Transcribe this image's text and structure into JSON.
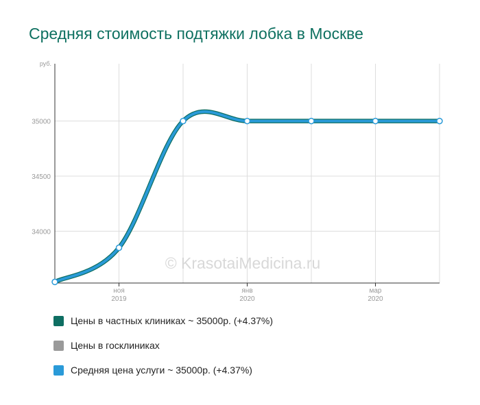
{
  "title": "Средняя стоимость подтяжки лобка в Москве",
  "watermark": "© KrasotaiMedicina.ru",
  "colors": {
    "private": "#0e6e62",
    "state": "#9a9a9a",
    "average": "#2a9ad8",
    "grid": "#dddddd",
    "axis": "#333333"
  },
  "legend": [
    {
      "label": "Цены в частных клиниках ~ 35000р. (+4.37%)",
      "color": "#0e6e62"
    },
    {
      "label": "Цены в госклиниках",
      "color": "#9a9a9a"
    },
    {
      "label": "Средняя цена услуги ~ 35000р. (+4.37%)",
      "color": "#2a9ad8"
    }
  ],
  "chart_data": {
    "type": "line",
    "title": "Средняя стоимость подтяжки лобка в Москве",
    "ylabel": "руб.",
    "ylim": [
      33530,
      35520
    ],
    "yticks": [
      34000,
      34500,
      35000
    ],
    "xticks": [
      {
        "index": 1,
        "month": "ноя",
        "year": "2019"
      },
      {
        "index": 3,
        "month": "янв",
        "year": "2020"
      },
      {
        "index": 5,
        "month": "мар",
        "year": "2020"
      }
    ],
    "grid": true,
    "x": [
      0,
      1,
      2,
      3,
      4,
      5,
      6
    ],
    "series": [
      {
        "name": "Средняя цена услуги ~ 35000р. (+4.37%)",
        "values": [
          33540,
          33850,
          35000,
          35000,
          35000,
          35000,
          35000
        ]
      }
    ]
  }
}
